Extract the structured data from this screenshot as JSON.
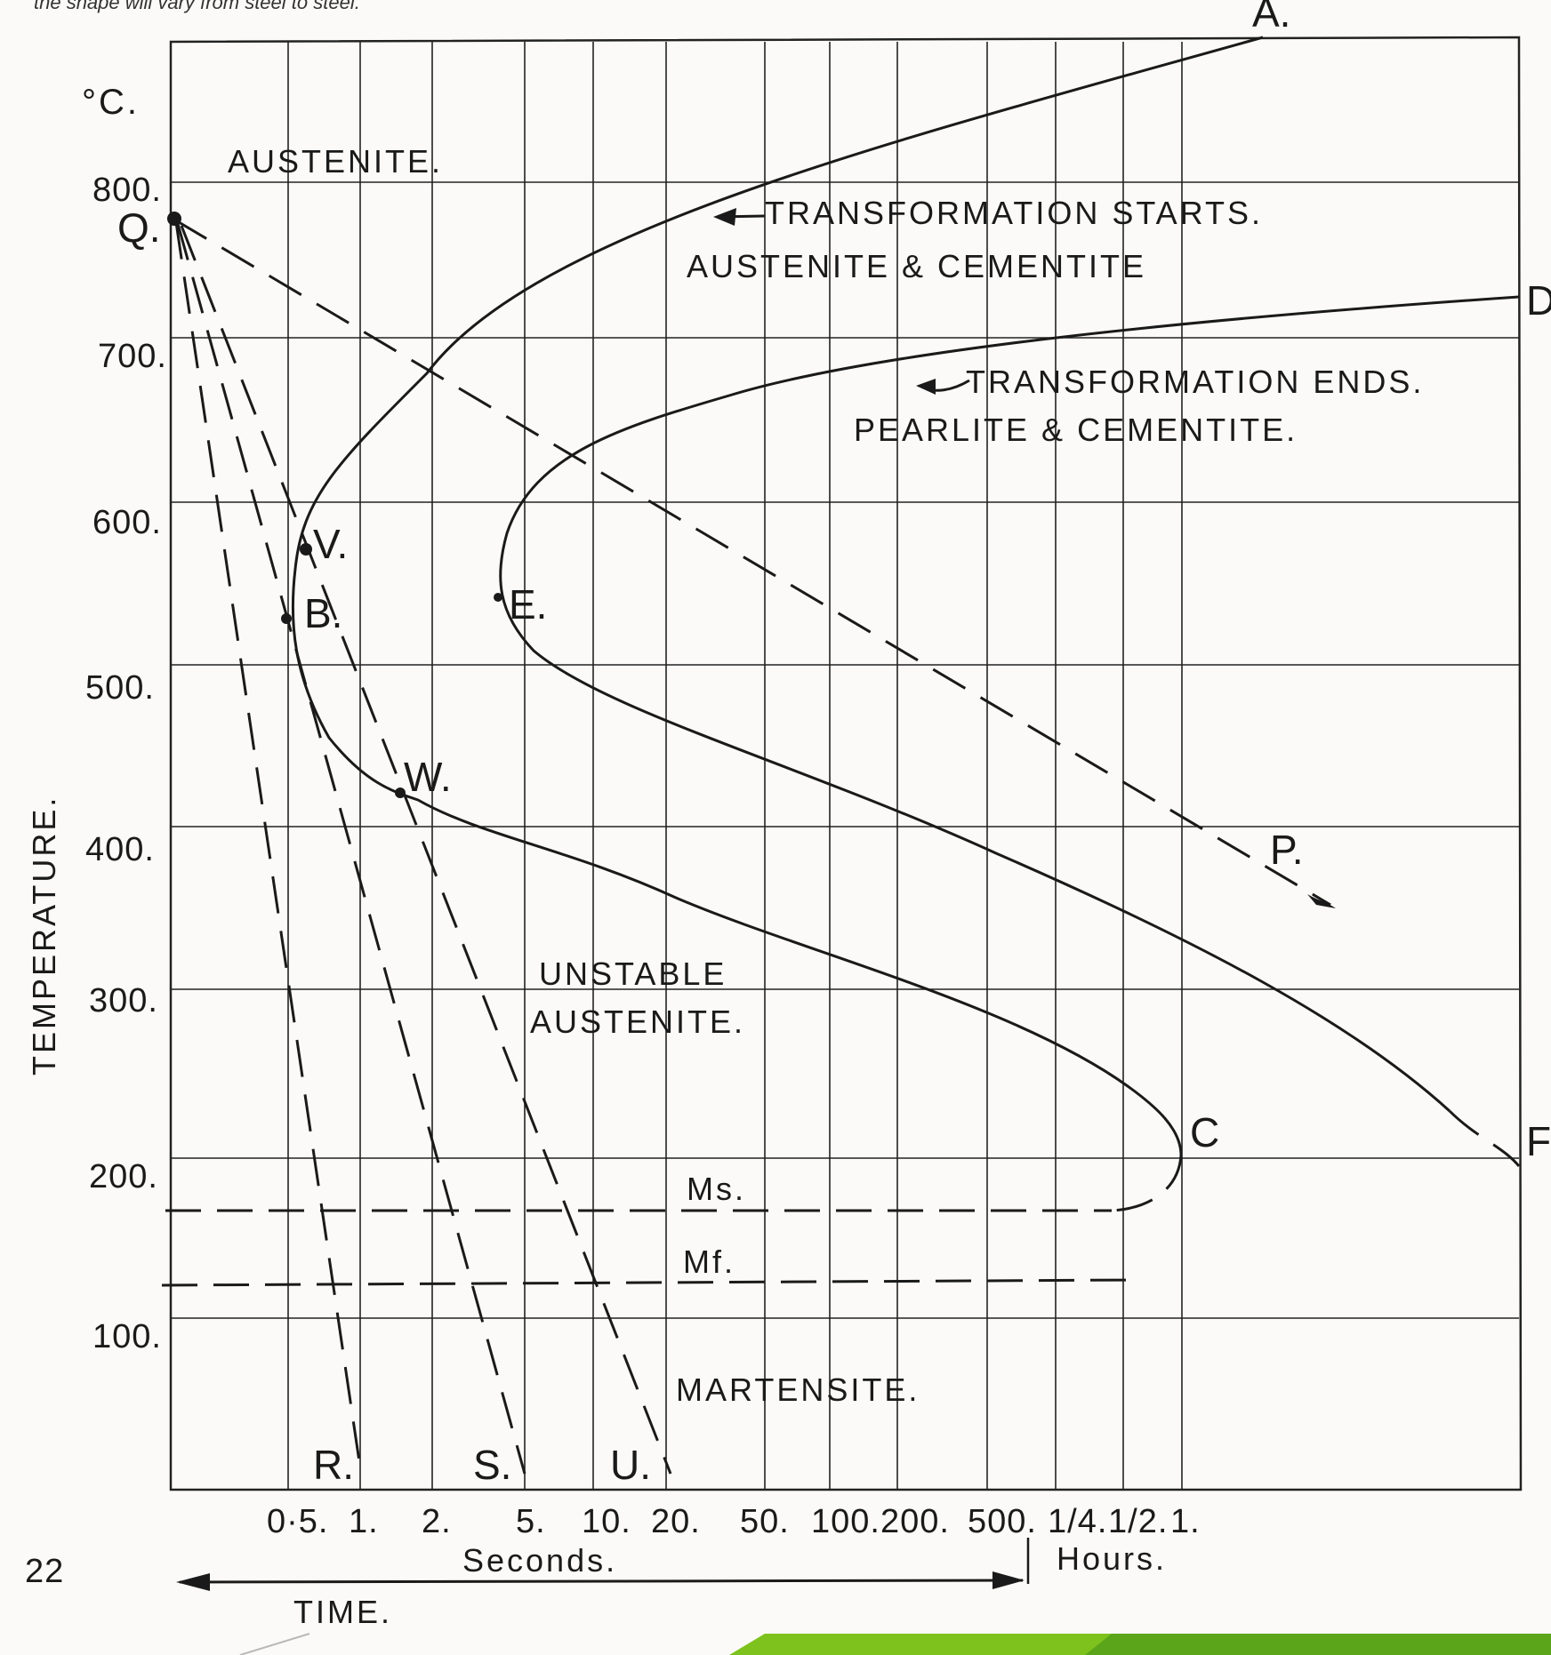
{
  "caption": "the shape will vary from steel to steel.",
  "page_number": "22",
  "colors": {
    "ink": "#1a1a1a",
    "paper": "#fbfaf8",
    "accent_green": "#7ec21d",
    "accent_green_dark": "#5aa51a"
  },
  "chart_data": {
    "type": "line",
    "title": "",
    "xlabel": "TIME.",
    "ylabel": "TEMPERATURE.",
    "y_unit": "°C.",
    "x_scale": "log",
    "ylim": [
      0,
      880
    ],
    "yticks": [
      {
        "value": 800,
        "label": "800."
      },
      {
        "value": 700,
        "label": "700."
      },
      {
        "value": 600,
        "label": "600."
      },
      {
        "value": 500,
        "label": "500."
      },
      {
        "value": 400,
        "label": "400."
      },
      {
        "value": 300,
        "label": "300."
      },
      {
        "value": 200,
        "label": "200."
      },
      {
        "value": 100,
        "label": "100."
      }
    ],
    "xticks": [
      {
        "seconds": 0.5,
        "label": "0·5."
      },
      {
        "seconds": 1,
        "label": "1."
      },
      {
        "seconds": 2,
        "label": "2."
      },
      {
        "seconds": 5,
        "label": "5."
      },
      {
        "seconds": 10,
        "label": "10."
      },
      {
        "seconds": 20,
        "label": "20."
      },
      {
        "seconds": 50,
        "label": "50."
      },
      {
        "seconds": 100,
        "label": "100."
      },
      {
        "seconds": 200,
        "label": "200."
      },
      {
        "seconds": 500,
        "label": "500."
      },
      {
        "seconds": 900,
        "label": "1/4."
      },
      {
        "seconds": 1800,
        "label": "1/2."
      },
      {
        "seconds": 3600,
        "label": "1."
      }
    ],
    "x_unit_labels": {
      "seconds": "Seconds.",
      "hours": "Hours."
    },
    "regions": [
      {
        "label": "AUSTENITE."
      },
      {
        "label": "UNSTABLE AUSTENITE."
      },
      {
        "label": "MARTENSITE."
      }
    ],
    "annotations": [
      {
        "label": "TRANSFORMATION STARTS."
      },
      {
        "label": "AUSTENITE & CEMENTITE"
      },
      {
        "label": "TRANSFORMATION ENDS."
      },
      {
        "label": "PEARLITE & CEMENTITE."
      }
    ],
    "series": [
      {
        "name": "A",
        "style": "solid",
        "points": [
          [
            3600,
            910
          ],
          [
            100,
            800
          ],
          [
            15,
            730
          ],
          [
            2,
            680
          ],
          [
            0.6,
            600
          ],
          [
            0.5,
            540
          ],
          [
            1.5,
            430
          ],
          [
            20,
            360
          ],
          [
            500,
            300
          ],
          [
            2500,
            250
          ],
          [
            3600,
            205
          ]
        ]
      },
      {
        "name": "D",
        "style": "solid",
        "points": [
          [
            20000,
            730
          ],
          [
            200,
            680
          ],
          [
            20,
            630
          ],
          [
            4,
            550
          ],
          [
            20,
            490
          ],
          [
            1000,
            380
          ],
          [
            20000,
            215
          ]
        ]
      },
      {
        "name": "P",
        "style": "dashed",
        "points": [
          [
            0.2,
            780
          ],
          [
            20000,
            355
          ]
        ]
      },
      {
        "name": "R",
        "style": "dashed",
        "points": [
          [
            0.2,
            780
          ],
          [
            1,
            0
          ]
        ]
      },
      {
        "name": "S",
        "style": "dashed",
        "points": [
          [
            0.2,
            780
          ],
          [
            4,
            0
          ]
        ]
      },
      {
        "name": "U",
        "style": "dashed",
        "points": [
          [
            0.2,
            780
          ],
          [
            20,
            0
          ]
        ]
      }
    ],
    "horizontal_lines": [
      {
        "label": "Ms.",
        "temperature": 170
      },
      {
        "label": "Mf.",
        "temperature": 125
      }
    ],
    "points": [
      {
        "label": "Q.",
        "temperature": 775
      },
      {
        "label": "V.",
        "seconds": 0.6,
        "temperature": 575
      },
      {
        "label": "B.",
        "seconds": 0.5,
        "temperature": 535
      },
      {
        "label": "E.",
        "seconds": 4,
        "temperature": 548
      },
      {
        "label": "W.",
        "seconds": 1.6,
        "temperature": 425
      },
      {
        "label": "C",
        "seconds": 3600,
        "temperature": 215
      },
      {
        "label": "P.",
        "temperature": 360
      },
      {
        "label": "A.",
        "temperature": 910
      },
      {
        "label": "D",
        "temperature": 730
      },
      {
        "label": "F",
        "temperature": 215
      },
      {
        "label": "R."
      },
      {
        "label": "S."
      },
      {
        "label": "U."
      }
    ]
  }
}
